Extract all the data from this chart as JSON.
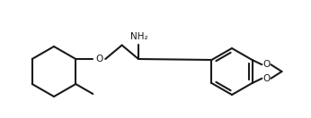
{
  "bg_color": "#ffffff",
  "line_color": "#1a1a1a",
  "lw": 1.5,
  "fs": 7.5,
  "NH2": "NH₂",
  "O1": "O",
  "O2": "O",
  "O3": "O",
  "figsize": [
    3.46,
    1.32
  ],
  "dpi": 100
}
